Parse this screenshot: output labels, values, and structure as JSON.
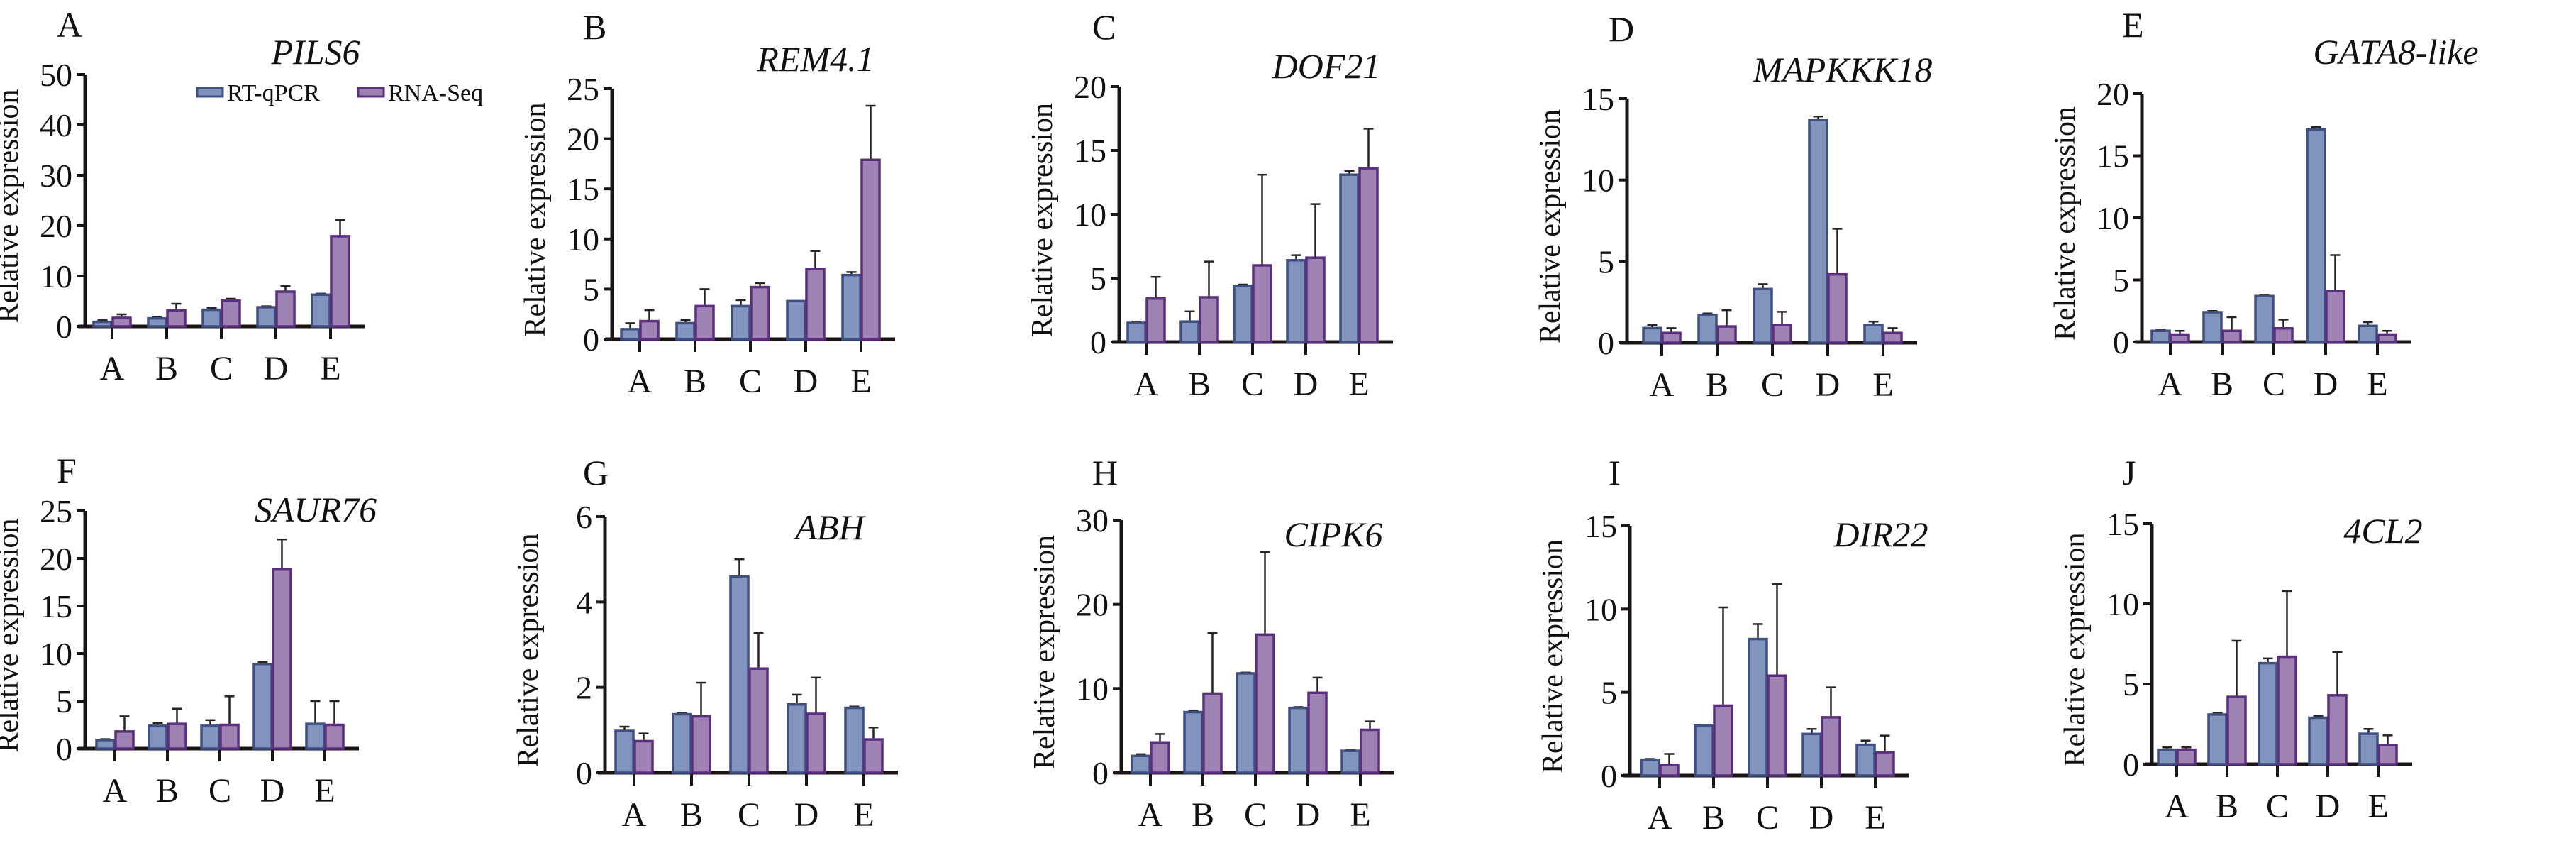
{
  "figure": {
    "legend": [
      {
        "name": "RT-qPCR",
        "fill": "#8194bd",
        "stroke": "#3f4f80"
      },
      {
        "name": "RNA-Seq",
        "fill": "#9f82b4",
        "stroke": "#5b2f7e"
      }
    ]
  },
  "chart_data": [
    {
      "panel": "A",
      "title": "PILS6",
      "type": "bar",
      "categories": [
        "A",
        "B",
        "C",
        "D",
        "E"
      ],
      "ylabel": "Relative expression",
      "ylim": [
        0,
        50
      ],
      "yticks": [
        0,
        10,
        20,
        30,
        40,
        50
      ],
      "legend": "top-right",
      "series": [
        {
          "name": "RT-qPCR",
          "values": [
            0.9,
            1.6,
            3.3,
            3.8,
            6.3
          ],
          "err_upper": [
            1.3,
            1.8,
            3.7,
            4.0,
            6.5
          ]
        },
        {
          "name": "RNA-Seq",
          "values": [
            1.7,
            3.2,
            5.1,
            6.9,
            17.9
          ],
          "err_upper": [
            2.4,
            4.5,
            5.5,
            8.0,
            21.1
          ]
        }
      ]
    },
    {
      "panel": "B",
      "title": "REM4.1",
      "type": "bar",
      "categories": [
        "A",
        "B",
        "C",
        "D",
        "E"
      ],
      "ylabel": "Relative expression",
      "ylim": [
        0,
        25
      ],
      "yticks": [
        0,
        5,
        10,
        15,
        20,
        25
      ],
      "series": [
        {
          "name": "RT-qPCR",
          "values": [
            1.0,
            1.6,
            3.3,
            3.8,
            6.4
          ],
          "err_upper": [
            1.6,
            1.9,
            3.9,
            3.8,
            6.7
          ]
        },
        {
          "name": "RNA-Seq",
          "values": [
            1.8,
            3.3,
            5.2,
            7.0,
            17.9
          ],
          "err_upper": [
            2.9,
            5.0,
            5.6,
            8.8,
            23.3
          ]
        }
      ]
    },
    {
      "panel": "C",
      "title": "DOF21",
      "type": "bar",
      "categories": [
        "A",
        "B",
        "C",
        "D",
        "E"
      ],
      "ylabel": "Relative expression",
      "ylim": [
        0,
        20
      ],
      "yticks": [
        0,
        5,
        10,
        15,
        20
      ],
      "series": [
        {
          "name": "RT-qPCR",
          "values": [
            1.5,
            1.6,
            4.4,
            6.4,
            13.1
          ],
          "err_upper": [
            1.6,
            2.4,
            4.5,
            6.8,
            13.4
          ]
        },
        {
          "name": "RNA-Seq",
          "values": [
            3.4,
            3.5,
            6.0,
            6.6,
            13.6
          ],
          "err_upper": [
            5.1,
            6.3,
            13.1,
            10.8,
            16.7
          ]
        }
      ]
    },
    {
      "panel": "D",
      "title": "MAPKKK18",
      "type": "bar",
      "categories": [
        "A",
        "B",
        "C",
        "D",
        "E"
      ],
      "ylabel": "Relative expression",
      "ylim": [
        0,
        15
      ],
      "yticks": [
        0,
        5,
        10,
        15
      ],
      "series": [
        {
          "name": "RT-qPCR",
          "values": [
            0.9,
            1.7,
            3.3,
            13.7,
            1.1
          ],
          "err_upper": [
            1.1,
            1.8,
            3.6,
            13.9,
            1.3
          ]
        },
        {
          "name": "RNA-Seq",
          "values": [
            0.6,
            1.0,
            1.1,
            4.2,
            0.6
          ],
          "err_upper": [
            0.9,
            2.0,
            1.9,
            7.0,
            0.9
          ]
        }
      ]
    },
    {
      "panel": "E",
      "title": "GATA8-like",
      "type": "bar",
      "categories": [
        "A",
        "B",
        "C",
        "D",
        "E"
      ],
      "ylabel": "Relative expression",
      "ylim": [
        0,
        20
      ],
      "yticks": [
        0,
        5,
        10,
        15,
        20
      ],
      "series": [
        {
          "name": "RT-qPCR",
          "values": [
            0.9,
            2.4,
            3.7,
            17.1,
            1.3
          ],
          "err_upper": [
            1.0,
            2.5,
            3.8,
            17.3,
            1.6
          ]
        },
        {
          "name": "RNA-Seq",
          "values": [
            0.6,
            0.9,
            1.1,
            4.1,
            0.6
          ],
          "err_upper": [
            0.9,
            2.0,
            1.8,
            7.0,
            0.9
          ]
        }
      ]
    },
    {
      "panel": "F",
      "title": "SAUR76",
      "type": "bar",
      "categories": [
        "A",
        "B",
        "C",
        "D",
        "E"
      ],
      "ylabel": "Relative expression",
      "ylim": [
        0,
        25
      ],
      "yticks": [
        0,
        5,
        10,
        15,
        20,
        25
      ],
      "series": [
        {
          "name": "RT-qPCR",
          "values": [
            0.9,
            2.4,
            2.4,
            8.9,
            2.6
          ],
          "err_upper": [
            1.0,
            2.7,
            3.0,
            9.1,
            5.0
          ]
        },
        {
          "name": "RNA-Seq",
          "values": [
            1.8,
            2.6,
            2.5,
            18.9,
            2.5
          ],
          "err_upper": [
            3.4,
            4.2,
            5.5,
            22.0,
            5.0
          ]
        }
      ]
    },
    {
      "panel": "G",
      "title": "ABH",
      "type": "bar",
      "categories": [
        "A",
        "B",
        "C",
        "D",
        "E"
      ],
      "ylabel": "Relative expression",
      "ylim": [
        0,
        6
      ],
      "yticks": [
        0,
        2,
        4,
        6
      ],
      "series": [
        {
          "name": "RT-qPCR",
          "values": [
            0.98,
            1.37,
            4.6,
            1.6,
            1.52
          ],
          "err_upper": [
            1.08,
            1.4,
            5.0,
            1.83,
            1.55
          ]
        },
        {
          "name": "RNA-Seq",
          "values": [
            0.74,
            1.32,
            2.44,
            1.38,
            0.78
          ],
          "err_upper": [
            0.92,
            2.11,
            3.27,
            2.23,
            1.06
          ]
        }
      ]
    },
    {
      "panel": "H",
      "title": "CIPK6",
      "type": "bar",
      "categories": [
        "A",
        "B",
        "C",
        "D",
        "E"
      ],
      "ylabel": "Relative expression",
      "ylim": [
        0,
        30
      ],
      "yticks": [
        0,
        10,
        20,
        30
      ],
      "series": [
        {
          "name": "RT-qPCR",
          "values": [
            2.0,
            7.2,
            11.8,
            7.7,
            2.6
          ],
          "err_upper": [
            2.2,
            7.4,
            11.9,
            7.8,
            2.7
          ]
        },
        {
          "name": "RNA-Seq",
          "values": [
            3.6,
            9.4,
            16.4,
            9.5,
            5.1
          ],
          "err_upper": [
            4.6,
            16.6,
            26.2,
            11.3,
            6.1
          ]
        }
      ]
    },
    {
      "panel": "I",
      "title": "DIR22",
      "type": "bar",
      "categories": [
        "A",
        "B",
        "C",
        "D",
        "E"
      ],
      "ylabel": "Relative expression",
      "ylim": [
        0,
        15
      ],
      "yticks": [
        0,
        5,
        10,
        15
      ],
      "series": [
        {
          "name": "RT-qPCR",
          "values": [
            0.95,
            3.0,
            8.2,
            2.5,
            1.85
          ],
          "err_upper": [
            1.0,
            3.05,
            9.1,
            2.8,
            2.1
          ]
        },
        {
          "name": "RNA-Seq",
          "values": [
            0.65,
            4.2,
            6.0,
            3.5,
            1.4
          ],
          "err_upper": [
            1.3,
            10.1,
            11.5,
            5.3,
            2.4
          ]
        }
      ]
    },
    {
      "panel": "J",
      "title": "4CL2",
      "type": "bar",
      "categories": [
        "A",
        "B",
        "C",
        "D",
        "E"
      ],
      "ylabel": "Relative expression",
      "ylim": [
        0,
        15
      ],
      "yticks": [
        0,
        5,
        10,
        15
      ],
      "series": [
        {
          "name": "RT-qPCR",
          "values": [
            0.9,
            3.1,
            6.3,
            2.9,
            1.9
          ],
          "err_upper": [
            1.05,
            3.2,
            6.6,
            3.0,
            2.2
          ]
        },
        {
          "name": "RNA-Seq",
          "values": [
            0.9,
            4.2,
            6.7,
            4.3,
            1.2
          ],
          "err_upper": [
            1.05,
            7.7,
            10.8,
            7.0,
            1.8
          ]
        }
      ]
    }
  ]
}
